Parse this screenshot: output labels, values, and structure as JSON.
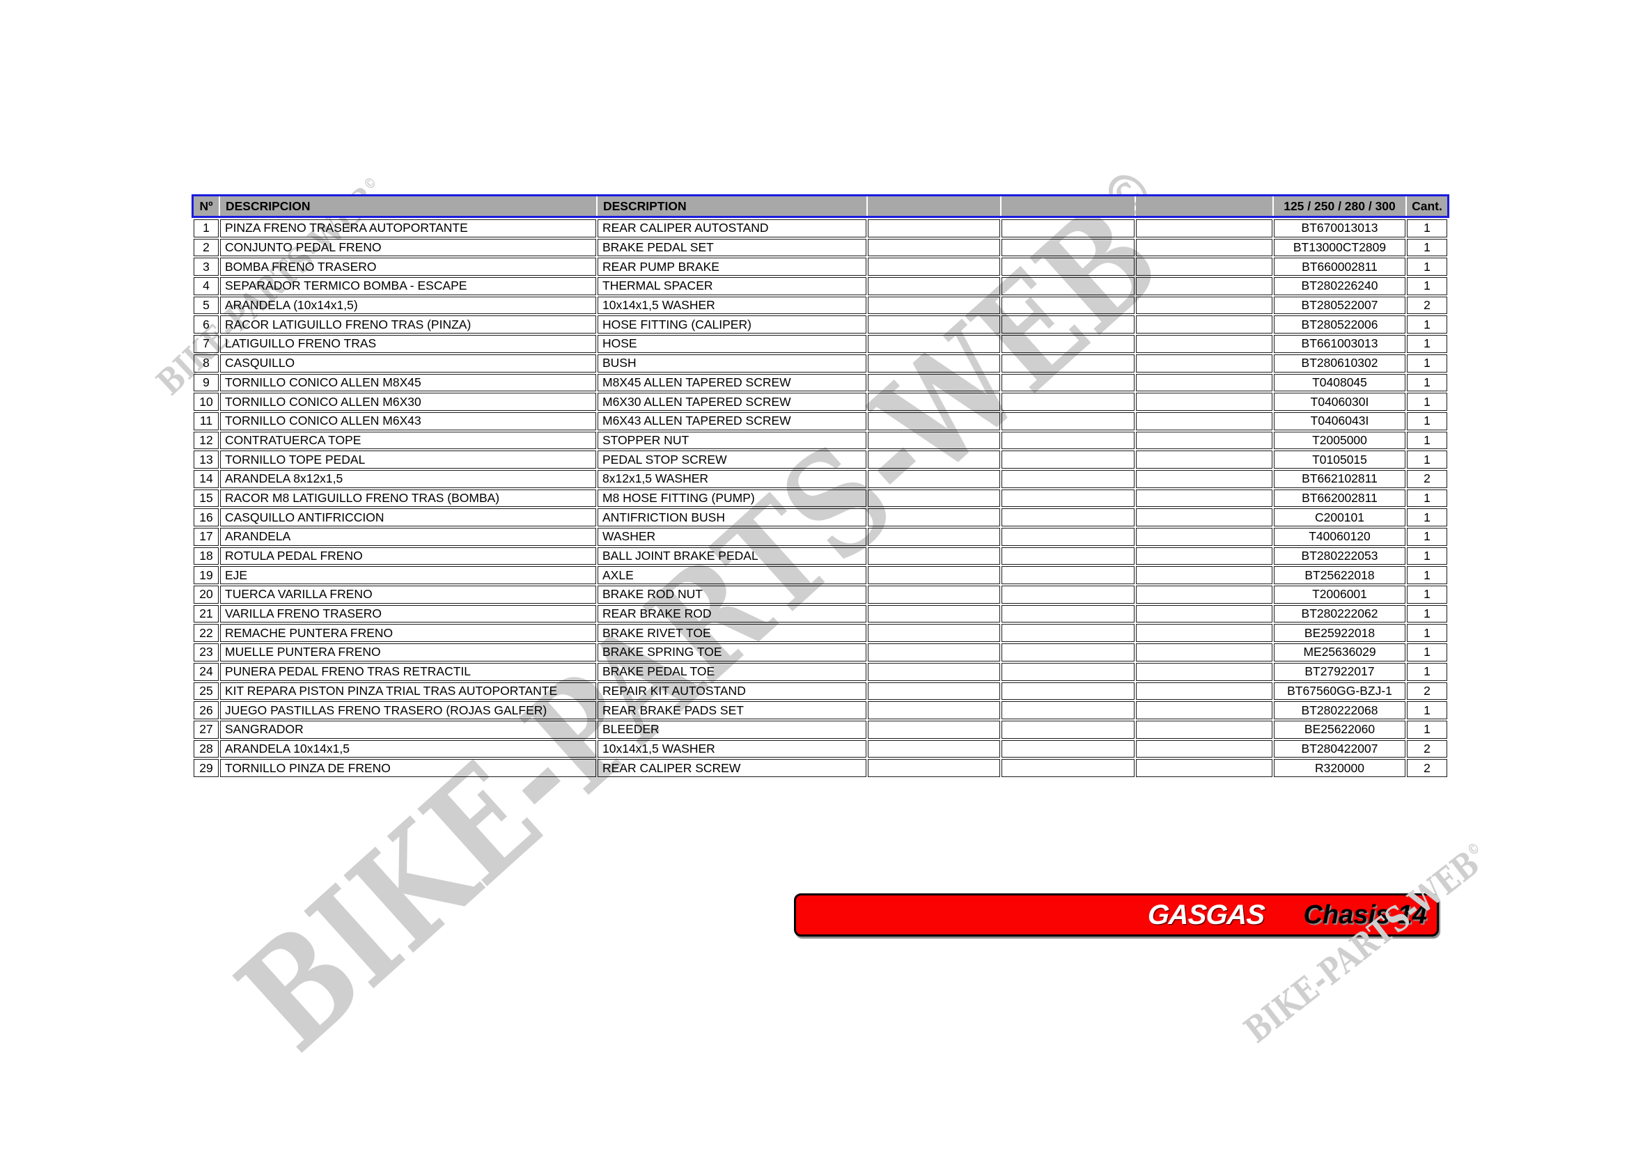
{
  "page": {
    "background": "#ffffff"
  },
  "watermarks": {
    "color": "#cfcfcf",
    "large": {
      "text": "BIKE-PARTS-WEB",
      "symbol": "©"
    },
    "top_left": {
      "text": "BIKE-PARTS-WEB",
      "symbol": "©"
    },
    "bottom_right": {
      "text": "BIKE-PARTS-WEB",
      "symbol": "©"
    }
  },
  "table": {
    "border_color": "#1a1a1a",
    "header_bg": "#a8a8a8",
    "header_outline_color": "#1b1be0",
    "headers": {
      "num": "Nº",
      "descripcion": "DESCRIPCION",
      "description": "DESCRIPTION",
      "models": "125 / 250 / 280 / 300",
      "qty": "Cant."
    },
    "rows": [
      {
        "num": "1",
        "es": "PINZA FRENO TRASERA AUTOPORTANTE",
        "en": "REAR CALIPER AUTOSTAND",
        "part": "BT670013013",
        "qty": "1"
      },
      {
        "num": "2",
        "es": "CONJUNTO PEDAL FRENO",
        "en": "BRAKE PEDAL SET",
        "part": "BT13000CT2809",
        "qty": "1"
      },
      {
        "num": "3",
        "es": "BOMBA FRENO TRASERO",
        "en": "REAR PUMP BRAKE",
        "part": "BT660002811",
        "qty": "1"
      },
      {
        "num": "4",
        "es": "SEPARADOR TERMICO BOMBA - ESCAPE",
        "en": "THERMAL SPACER",
        "part": "BT280226240",
        "qty": "1"
      },
      {
        "num": "5",
        "es": "ARANDELA (10x14x1,5)",
        "en": "10x14x1,5 WASHER",
        "part": "BT280522007",
        "qty": "2"
      },
      {
        "num": "6",
        "es": "RACOR LATIGUILLO FRENO TRAS (PINZA)",
        "en": "HOSE FITTING (CALIPER)",
        "part": "BT280522006",
        "qty": "1"
      },
      {
        "num": "7",
        "es": "LATIGUILLO FRENO TRAS",
        "en": "HOSE",
        "part": "BT661003013",
        "qty": "1"
      },
      {
        "num": "8",
        "es": "CASQUILLO",
        "en": "BUSH",
        "part": "BT280610302",
        "qty": "1"
      },
      {
        "num": "9",
        "es": "TORNILLO CONICO ALLEN M8X45",
        "en": "M8X45 ALLEN TAPERED SCREW",
        "part": "T0408045",
        "qty": "1"
      },
      {
        "num": "10",
        "es": "TORNILLO CONICO ALLEN M6X30",
        "en": "M6X30 ALLEN TAPERED SCREW",
        "part": "T0406030I",
        "qty": "1"
      },
      {
        "num": "11",
        "es": "TORNILLO CONICO ALLEN M6X43",
        "en": "M6X43 ALLEN TAPERED SCREW",
        "part": "T0406043I",
        "qty": "1"
      },
      {
        "num": "12",
        "es": "CONTRATUERCA TOPE",
        "en": "STOPPER NUT",
        "part": "T2005000",
        "qty": "1"
      },
      {
        "num": "13",
        "es": "TORNILLO TOPE PEDAL",
        "en": "PEDAL STOP SCREW",
        "part": "T0105015",
        "qty": "1"
      },
      {
        "num": "14",
        "es": "ARANDELA 8x12x1,5",
        "en": "8x12x1,5 WASHER",
        "part": "BT662102811",
        "qty": "2"
      },
      {
        "num": "15",
        "es": "RACOR M8 LATIGUILLO FRENO TRAS (BOMBA)",
        "en": "M8 HOSE FITTING (PUMP)",
        "part": "BT662002811",
        "qty": "1"
      },
      {
        "num": "16",
        "es": "CASQUILLO ANTIFRICCION",
        "en": "ANTIFRICTION BUSH",
        "part": "C200101",
        "qty": "1"
      },
      {
        "num": "17",
        "es": "ARANDELA",
        "en": "WASHER",
        "part": "T40060120",
        "qty": "1"
      },
      {
        "num": "18",
        "es": "ROTULA PEDAL FRENO",
        "en": "BALL JOINT BRAKE PEDAL",
        "part": "BT280222053",
        "qty": "1"
      },
      {
        "num": "19",
        "es": "EJE",
        "en": "AXLE",
        "part": "BT25622018",
        "qty": "1"
      },
      {
        "num": "20",
        "es": "TUERCA VARILLA FRENO",
        "en": "BRAKE ROD NUT",
        "part": "T2006001",
        "qty": "1"
      },
      {
        "num": "21",
        "es": "VARILLA FRENO TRASERO",
        "en": "REAR BRAKE ROD",
        "part": "BT280222062",
        "qty": "1"
      },
      {
        "num": "22",
        "es": "REMACHE PUNTERA FRENO",
        "en": "BRAKE RIVET TOE",
        "part": "BE25922018",
        "qty": "1"
      },
      {
        "num": "23",
        "es": "MUELLE PUNTERA FRENO",
        "en": "BRAKE SPRING TOE",
        "part": "ME25636029",
        "qty": "1"
      },
      {
        "num": "24",
        "es": "PUNERA PEDAL FRENO TRAS RETRACTIL",
        "en": "BRAKE PEDAL TOE",
        "part": "BT27922017",
        "qty": "1"
      },
      {
        "num": "25",
        "es": "KIT REPARA PISTON PINZA TRIAL TRAS AUTOPORTANTE",
        "en": "REPAIR KIT AUTOSTAND",
        "part": "BT67560GG-BZJ-1",
        "qty": "2"
      },
      {
        "num": "26",
        "es": "JUEGO PASTILLAS FRENO TRASERO (ROJAS GALFER)",
        "en": "REAR BRAKE PADS SET",
        "part": "BT280222068",
        "qty": "1"
      },
      {
        "num": "27",
        "es": "SANGRADOR",
        "en": "BLEEDER",
        "part": "BE25622060",
        "qty": "1"
      },
      {
        "num": "28",
        "es": "ARANDELA  10x14x1,5",
        "en": "10x14x1,5 WASHER",
        "part": "BT280422007",
        "qty": "2"
      },
      {
        "num": "29",
        "es": "TORNILLO PINZA DE FRENO",
        "en": "REAR CALIPER SCREW",
        "part": "R320000",
        "qty": "2"
      }
    ]
  },
  "banner": {
    "bg": "#fb0202",
    "brand": "GASGAS",
    "title": "Chasis 14"
  }
}
